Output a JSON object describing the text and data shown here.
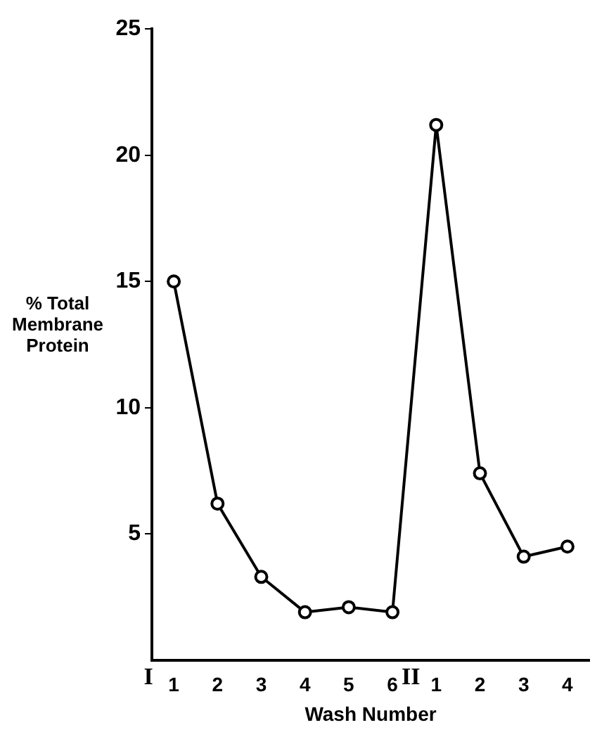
{
  "chart_data": {
    "type": "line",
    "xlabel": "Wash Number",
    "ylabel": "% Total Membrane Protein",
    "categories": [
      "1",
      "2",
      "3",
      "4",
      "5",
      "6",
      "1",
      "2",
      "3",
      "4"
    ],
    "series": [
      {
        "color": "#000000",
        "values": [
          15.0,
          6.2,
          3.3,
          1.9,
          2.1,
          1.9,
          21.2,
          7.4,
          4.1,
          4.5
        ]
      }
    ],
    "ylim": [
      0,
      25
    ],
    "yticks": [
      5,
      10,
      15,
      20,
      25
    ],
    "grid": false,
    "legend": false,
    "marker": "circle",
    "line_style": "solid",
    "annotations": [
      "I",
      "II"
    ]
  }
}
